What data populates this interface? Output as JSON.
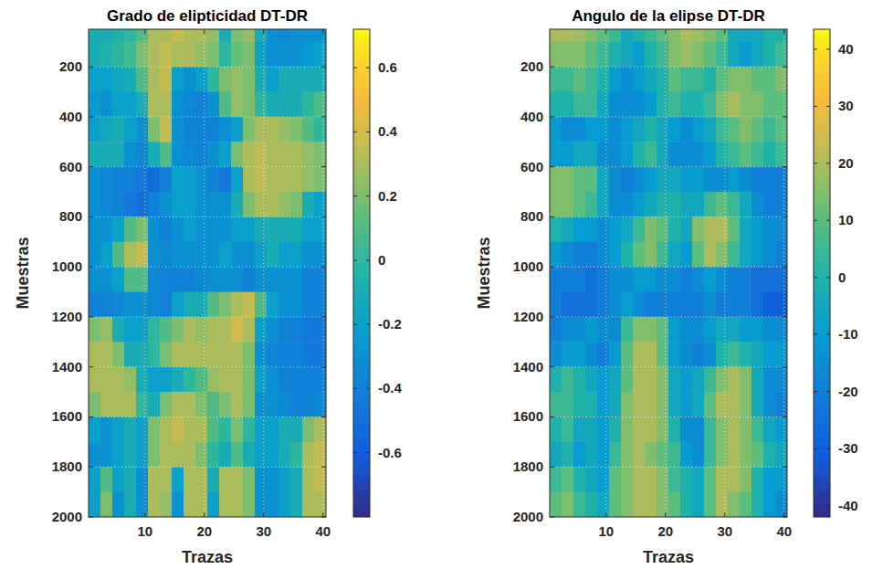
{
  "chart_data": [
    {
      "type": "heatmap",
      "title": "Grado de elipticidad DT-DR",
      "x_label": "Trazas",
      "y_label": "Muestras",
      "xlim": [
        0.5,
        40.5
      ],
      "ylim": [
        50,
        2000
      ],
      "xticks": [
        10,
        20,
        30,
        40
      ],
      "yticks": [
        200,
        400,
        600,
        800,
        1000,
        1200,
        1400,
        1600,
        1800,
        2000
      ],
      "grid": true,
      "x": [
        1.5,
        3.5,
        5.5,
        7.5,
        9.5,
        11.5,
        13.5,
        15.5,
        17.5,
        19.5,
        21.5,
        23.5,
        25.5,
        27.5,
        29.5,
        31.5,
        33.5,
        35.5,
        37.5,
        39.5
      ],
      "y": [
        50,
        150,
        250,
        350,
        450,
        550,
        650,
        750,
        850,
        950,
        1050,
        1150,
        1250,
        1350,
        1450,
        1550,
        1650,
        1750,
        1850,
        1950
      ],
      "cells": [
        [
          -0.1,
          -0.1,
          -0.05,
          0,
          0.1,
          0.3,
          0.3,
          0.35,
          0.3,
          0.3,
          0.25,
          -0.1,
          0.2,
          0.25,
          -0.1,
          -0.3,
          -0.35,
          -0.3,
          -0.3,
          -0.3
        ],
        [
          -0.1,
          -0.05,
          0,
          0.05,
          0.2,
          0.3,
          0.35,
          0.3,
          0.3,
          0.25,
          0.2,
          0,
          0.15,
          0.2,
          -0.2,
          -0.3,
          -0.3,
          -0.3,
          -0.25,
          -0.2
        ],
        [
          -0.2,
          -0.2,
          -0.15,
          -0.1,
          0.1,
          0.3,
          0.35,
          -0.2,
          -0.3,
          -0.2,
          0,
          0.2,
          0.25,
          0.2,
          -0.1,
          -0.2,
          -0.1,
          -0.1,
          -0.1,
          -0.1
        ],
        [
          -0.25,
          -0.3,
          -0.2,
          -0.2,
          -0.1,
          0.3,
          0.3,
          -0.3,
          -0.35,
          -0.4,
          -0.3,
          0.1,
          0.25,
          0.2,
          0,
          -0.1,
          -0.1,
          -0.1,
          0,
          0.1
        ],
        [
          -0.2,
          -0.15,
          -0.1,
          -0.2,
          -0.3,
          0.2,
          0.35,
          -0.3,
          -0.4,
          -0.4,
          -0.4,
          -0.3,
          -0.2,
          0.2,
          0.3,
          0.3,
          0.25,
          0.2,
          0.1,
          0
        ],
        [
          -0.1,
          -0.1,
          -0.1,
          -0.3,
          -0.35,
          -0.1,
          0.1,
          -0.3,
          -0.35,
          -0.4,
          -0.3,
          -0.2,
          0.2,
          0.3,
          0.35,
          0.3,
          0.3,
          0.3,
          0.25,
          0.2
        ],
        [
          -0.3,
          -0.35,
          -0.4,
          -0.4,
          -0.45,
          -0.5,
          -0.4,
          -0.2,
          -0.2,
          -0.3,
          -0.4,
          -0.45,
          -0.2,
          0.3,
          0.35,
          0.3,
          0.3,
          0.3,
          0.25,
          0.2
        ],
        [
          -0.3,
          -0.35,
          -0.4,
          -0.45,
          -0.5,
          -0.4,
          -0.3,
          -0.2,
          -0.2,
          -0.3,
          -0.3,
          -0.3,
          -0.1,
          0.2,
          0.3,
          0.3,
          0.25,
          0.2,
          -0.1,
          -0.2
        ],
        [
          -0.3,
          -0.3,
          -0.2,
          0.1,
          0.2,
          -0.3,
          -0.4,
          -0.3,
          -0.2,
          -0.3,
          -0.3,
          -0.3,
          -0.2,
          -0.2,
          -0.1,
          -0.1,
          -0.1,
          -0.1,
          -0.2,
          -0.2
        ],
        [
          -0.3,
          -0.2,
          0.1,
          0.3,
          0.35,
          -0.3,
          -0.35,
          -0.3,
          -0.3,
          -0.3,
          -0.3,
          -0.2,
          -0.3,
          -0.3,
          -0.2,
          -0.1,
          -0.2,
          -0.2,
          -0.3,
          -0.3
        ],
        [
          -0.3,
          -0.3,
          -0.2,
          0.1,
          0.1,
          -0.35,
          -0.4,
          -0.4,
          -0.4,
          -0.35,
          -0.3,
          -0.3,
          -0.3,
          -0.4,
          -0.3,
          -0.3,
          -0.3,
          -0.3,
          -0.4,
          -0.4
        ],
        [
          -0.4,
          -0.4,
          -0.35,
          -0.3,
          -0.3,
          -0.35,
          -0.4,
          -0.2,
          -0.1,
          -0.1,
          0.1,
          0.2,
          0.3,
          0.35,
          0.1,
          -0.2,
          -0.3,
          -0.3,
          -0.4,
          -0.4
        ],
        [
          0.2,
          0.25,
          -0.1,
          -0.2,
          -0.2,
          0,
          0.1,
          0.2,
          0.3,
          0.25,
          0.3,
          0.3,
          0.4,
          0.3,
          -0.2,
          -0.3,
          -0.4,
          -0.4,
          -0.45,
          -0.45
        ],
        [
          0.3,
          0.3,
          0.2,
          -0.1,
          -0.1,
          0,
          0.2,
          0.3,
          0.3,
          0.3,
          0.3,
          0.3,
          0.3,
          0.2,
          -0.3,
          -0.35,
          -0.4,
          -0.4,
          -0.45,
          -0.45
        ],
        [
          0.3,
          0.3,
          0.3,
          0.25,
          -0.1,
          -0.2,
          -0.2,
          -0.1,
          0,
          0.1,
          0.25,
          0.3,
          0.3,
          0.2,
          -0.2,
          -0.3,
          -0.4,
          -0.4,
          -0.4,
          -0.4
        ],
        [
          0.2,
          0.3,
          0.3,
          0.3,
          0,
          -0.1,
          0.2,
          0.3,
          0.3,
          0.2,
          0.1,
          0.2,
          0.3,
          0.2,
          -0.3,
          -0.3,
          -0.35,
          -0.4,
          -0.4,
          -0.35
        ],
        [
          -0.2,
          -0.3,
          -0.2,
          -0.1,
          -0.2,
          0.2,
          0.3,
          0.35,
          0.3,
          0.3,
          0.1,
          0,
          0.2,
          0,
          -0.2,
          -0.2,
          -0.1,
          -0.1,
          0.2,
          0.3
        ],
        [
          -0.3,
          -0.3,
          -0.2,
          -0.1,
          -0.2,
          0.2,
          0.3,
          0.3,
          0.3,
          0.2,
          0,
          -0.1,
          0.1,
          -0.1,
          -0.2,
          -0.2,
          -0.1,
          0,
          0.3,
          0.35
        ],
        [
          -0.2,
          0.1,
          -0.2,
          -0.1,
          -0.3,
          0.3,
          0.3,
          -0.2,
          0.3,
          0.3,
          -0.1,
          0.3,
          0.3,
          0.2,
          -0.3,
          -0.3,
          -0.2,
          -0.1,
          0.3,
          0.35
        ],
        [
          -0.2,
          0.2,
          -0.3,
          -0.1,
          -0.3,
          0.3,
          0.25,
          -0.3,
          0.3,
          0.3,
          -0.2,
          0.3,
          0.3,
          0.2,
          -0.3,
          -0.3,
          -0.2,
          -0.1,
          0.3,
          0.3
        ]
      ],
      "colorbar": {
        "lim": [
          -0.8,
          0.72
        ],
        "ticks": [
          -0.6,
          -0.4,
          -0.2,
          0,
          0.2,
          0.4,
          0.6
        ]
      }
    },
    {
      "type": "heatmap",
      "title": "Angulo de la elipse DT-DR",
      "x_label": "Trazas",
      "y_label": "Muestras",
      "xlim": [
        0.5,
        40.5
      ],
      "ylim": [
        50,
        2000
      ],
      "xticks": [
        10,
        20,
        30,
        40
      ],
      "yticks": [
        200,
        400,
        600,
        800,
        1000,
        1200,
        1400,
        1600,
        1800,
        2000
      ],
      "grid": true,
      "x": [
        1.5,
        3.5,
        5.5,
        7.5,
        9.5,
        11.5,
        13.5,
        15.5,
        17.5,
        19.5,
        21.5,
        23.5,
        25.5,
        27.5,
        29.5,
        31.5,
        33.5,
        35.5,
        37.5,
        39.5
      ],
      "y": [
        50,
        150,
        250,
        350,
        450,
        550,
        650,
        750,
        850,
        950,
        1050,
        1150,
        1250,
        1350,
        1450,
        1550,
        1650,
        1750,
        1850,
        1950
      ],
      "cells": [
        [
          20,
          20,
          18,
          15,
          10,
          5,
          -5,
          0,
          5,
          10,
          15,
          20,
          18,
          15,
          10,
          -5,
          -5,
          -5,
          0,
          0
        ],
        [
          15,
          15,
          15,
          10,
          5,
          0,
          -5,
          -10,
          0,
          5,
          15,
          18,
          15,
          10,
          5,
          -5,
          -10,
          -5,
          0,
          5
        ],
        [
          5,
          5,
          10,
          5,
          0,
          -10,
          -15,
          -10,
          -5,
          0,
          10,
          5,
          5,
          0,
          10,
          15,
          15,
          10,
          10,
          15
        ],
        [
          0,
          0,
          5,
          5,
          -5,
          -15,
          -15,
          -15,
          -10,
          0,
          5,
          0,
          0,
          5,
          15,
          20,
          15,
          15,
          10,
          10
        ],
        [
          -10,
          -15,
          -15,
          -10,
          -10,
          -15,
          -10,
          -5,
          0,
          -5,
          -10,
          -15,
          -10,
          -5,
          5,
          10,
          15,
          10,
          5,
          10
        ],
        [
          -10,
          -10,
          -5,
          -5,
          -15,
          -15,
          -10,
          0,
          5,
          -5,
          -15,
          -15,
          -15,
          -10,
          0,
          5,
          10,
          5,
          0,
          5
        ],
        [
          15,
          15,
          10,
          10,
          -5,
          -15,
          -20,
          -15,
          -10,
          -5,
          -5,
          -10,
          -10,
          -15,
          -15,
          -10,
          -15,
          -20,
          -20,
          -20
        ],
        [
          15,
          15,
          10,
          5,
          -5,
          -15,
          -15,
          -10,
          -5,
          0,
          0,
          -5,
          -5,
          5,
          10,
          5,
          -5,
          -15,
          -20,
          -20
        ],
        [
          0,
          -5,
          -10,
          -10,
          -15,
          -10,
          -5,
          5,
          15,
          10,
          0,
          -5,
          15,
          20,
          20,
          10,
          -5,
          -10,
          -15,
          -15
        ],
        [
          -10,
          -15,
          -20,
          -20,
          -15,
          -10,
          0,
          10,
          15,
          5,
          -5,
          -10,
          10,
          20,
          15,
          5,
          -5,
          -10,
          -15,
          -20
        ],
        [
          -20,
          -20,
          -20,
          -25,
          -20,
          -15,
          -15,
          -10,
          -10,
          -15,
          -15,
          -20,
          -15,
          -10,
          -15,
          -20,
          -20,
          -25,
          -25,
          -25
        ],
        [
          -20,
          -25,
          -25,
          -25,
          -20,
          -15,
          -10,
          -15,
          -20,
          -20,
          -20,
          -20,
          -20,
          -15,
          -20,
          -20,
          -20,
          -25,
          -30,
          -30
        ],
        [
          -20,
          -15,
          -15,
          -10,
          -15,
          -15,
          5,
          15,
          15,
          10,
          -10,
          -15,
          -15,
          -10,
          -5,
          -5,
          -10,
          -10,
          -15,
          -15
        ],
        [
          -15,
          -10,
          -10,
          -15,
          -20,
          -10,
          10,
          20,
          20,
          10,
          -10,
          -15,
          -20,
          -15,
          0,
          5,
          0,
          -5,
          -10,
          -10
        ],
        [
          0,
          5,
          0,
          -5,
          -10,
          -5,
          10,
          20,
          20,
          15,
          -5,
          -10,
          -5,
          5,
          15,
          20,
          15,
          -5,
          -15,
          -15
        ],
        [
          5,
          5,
          0,
          0,
          -10,
          -5,
          15,
          20,
          20,
          15,
          -5,
          -10,
          -5,
          10,
          20,
          20,
          15,
          -5,
          -15,
          -20
        ],
        [
          0,
          5,
          -5,
          -5,
          -10,
          0,
          15,
          20,
          20,
          15,
          0,
          -15,
          -15,
          5,
          15,
          20,
          15,
          5,
          -5,
          -10
        ],
        [
          -5,
          0,
          -10,
          -5,
          -10,
          5,
          15,
          20,
          15,
          10,
          5,
          -10,
          -15,
          5,
          15,
          20,
          15,
          10,
          0,
          -5
        ],
        [
          5,
          10,
          0,
          -5,
          -10,
          10,
          15,
          20,
          20,
          15,
          5,
          0,
          -5,
          10,
          20,
          20,
          15,
          0,
          -10,
          -10
        ],
        [
          10,
          15,
          5,
          0,
          -5,
          10,
          15,
          20,
          20,
          15,
          10,
          0,
          -5,
          10,
          20,
          15,
          10,
          0,
          -10,
          -15
        ]
      ],
      "colorbar": {
        "lim": [
          -42,
          43.5
        ],
        "ticks": [
          -40,
          -30,
          -20,
          -10,
          0,
          10,
          20,
          30,
          40
        ]
      }
    }
  ]
}
